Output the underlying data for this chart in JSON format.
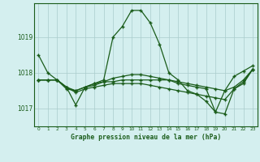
{
  "title": "Graphe pression niveau de la mer (hPa)",
  "background_color": "#d4efef",
  "grid_color": "#aacccc",
  "line_color": "#1a5c1a",
  "ylabel_ticks": [
    1017,
    1018,
    1019
  ],
  "x_ticks": [
    0,
    1,
    2,
    3,
    4,
    5,
    6,
    7,
    8,
    9,
    10,
    11,
    12,
    13,
    14,
    15,
    16,
    17,
    18,
    19,
    20,
    21,
    22,
    23
  ],
  "series": [
    [
      1018.5,
      1018.0,
      1017.8,
      1017.6,
      1017.1,
      1017.6,
      1017.7,
      1017.8,
      1019.0,
      1019.3,
      1019.75,
      1019.75,
      1019.4,
      1018.8,
      1018.0,
      1017.8,
      1017.5,
      1017.4,
      1017.2,
      1016.9,
      1017.5,
      1017.9,
      1018.05,
      1018.2
    ],
    [
      1017.8,
      1017.8,
      1017.8,
      1017.6,
      1017.5,
      1017.6,
      1017.65,
      1017.75,
      1017.85,
      1017.9,
      1017.95,
      1017.95,
      1017.9,
      1017.85,
      1017.8,
      1017.75,
      1017.7,
      1017.65,
      1017.6,
      1017.55,
      1017.5,
      1017.6,
      1017.8,
      1018.1
    ],
    [
      1017.8,
      1017.8,
      1017.8,
      1017.55,
      1017.5,
      1017.6,
      1017.7,
      1017.75,
      1017.75,
      1017.8,
      1017.8,
      1017.8,
      1017.8,
      1017.8,
      1017.8,
      1017.7,
      1017.65,
      1017.6,
      1017.55,
      1016.9,
      1016.85,
      1017.55,
      1017.75,
      1018.1
    ],
    [
      1017.8,
      1017.8,
      1017.8,
      1017.6,
      1017.45,
      1017.55,
      1017.6,
      1017.65,
      1017.7,
      1017.7,
      1017.7,
      1017.7,
      1017.65,
      1017.6,
      1017.55,
      1017.5,
      1017.45,
      1017.4,
      1017.35,
      1017.3,
      1017.25,
      1017.55,
      1017.7,
      1018.1
    ]
  ],
  "ylim": [
    1016.5,
    1019.95
  ],
  "xlim": [
    -0.5,
    23.5
  ],
  "xtick_fontsize": 4.2,
  "ytick_fontsize": 5.5,
  "title_fontsize": 5.8
}
